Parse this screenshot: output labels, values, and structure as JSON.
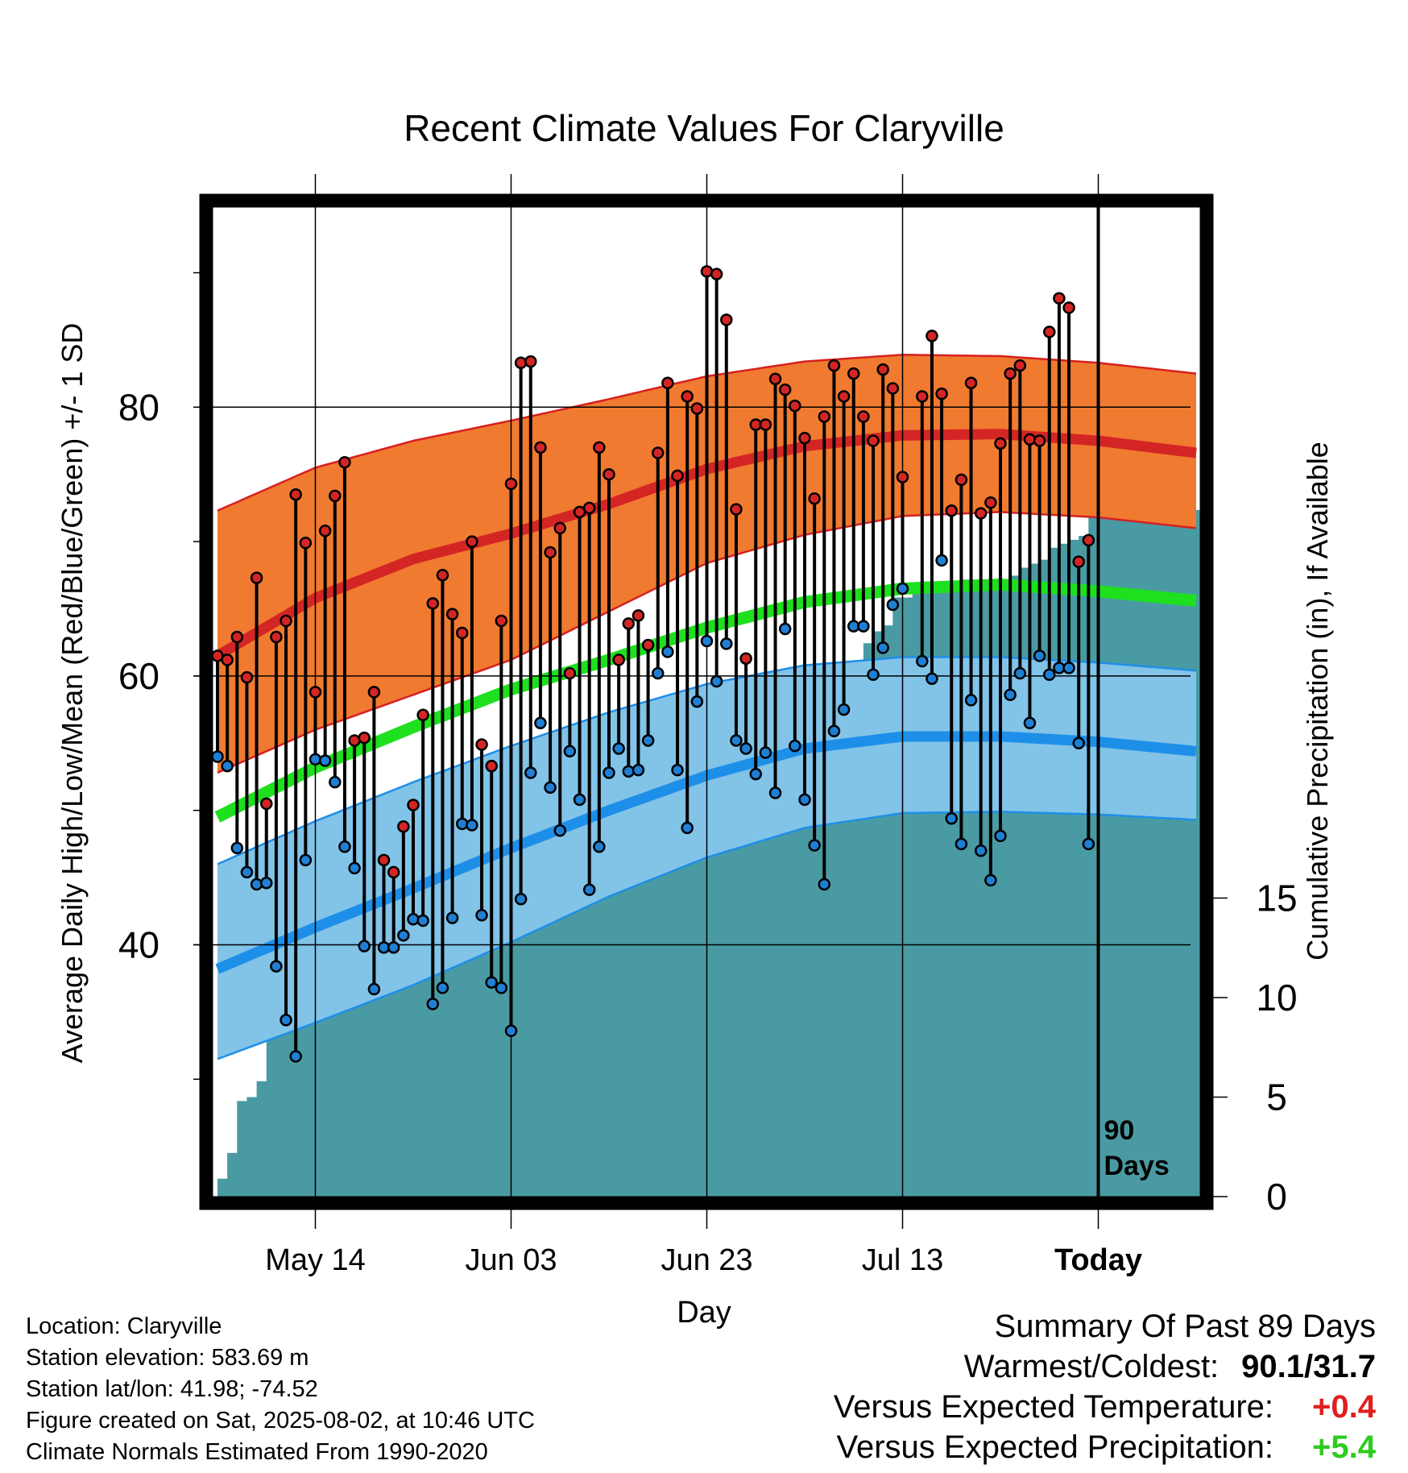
{
  "title": "Recent Climate Values For Claryville",
  "colors": {
    "high_band": "#f07a30",
    "high_band_edge": "#d62020",
    "high_mean": "#d42525",
    "mean_line": "#1ee01e",
    "low_band": "#82c3e8",
    "low_band_edge": "#1e8fe8",
    "low_mean": "#1e8fe8",
    "precip": "#4a9aa3",
    "high_dot": "#d42525",
    "low_dot": "#1e7fd4"
  },
  "chart_data": {
    "type": "line",
    "title": "Recent Climate Values For Claryville",
    "xlabel": "Day",
    "ylabel": "Average Daily High/Low/Mean (Red/Blue/Green) +/- 1 SD",
    "y2label": "Cumulative Precipitation (in), If Available",
    "x_tick_labels": [
      "May 14",
      "Jun 03",
      "Jun 23",
      "Jul 13",
      "Today"
    ],
    "x_tick_days": [
      10,
      30,
      50,
      70,
      90
    ],
    "x_range": [
      0,
      100
    ],
    "y_ticks": [
      40,
      60,
      80
    ],
    "y_range": [
      22,
      95
    ],
    "y2_ticks": [
      0,
      5,
      10,
      15
    ],
    "y2_range": [
      0,
      51
    ],
    "end_label_line1": "90",
    "end_label_line2": "Days",
    "normals": {
      "days": [
        0,
        10,
        20,
        30,
        40,
        50,
        60,
        70,
        80,
        90,
        100
      ],
      "high_mean": [
        61.5,
        65.8,
        68.7,
        70.6,
        72.8,
        75.4,
        77.1,
        77.9,
        78.0,
        77.5,
        76.6
      ],
      "high_upper": [
        72.3,
        75.5,
        77.5,
        79.0,
        80.6,
        82.3,
        83.4,
        83.9,
        83.8,
        83.3,
        82.5
      ],
      "high_lower": [
        52.8,
        56.0,
        58.6,
        61.2,
        64.8,
        68.4,
        70.5,
        71.9,
        72.2,
        71.8,
        71.0
      ],
      "mean": [
        49.5,
        53.2,
        56.2,
        59.0,
        61.2,
        63.6,
        65.5,
        66.5,
        66.8,
        66.3,
        65.6
      ],
      "low_upper": [
        46.0,
        49.2,
        52.1,
        54.8,
        57.3,
        59.4,
        60.8,
        61.4,
        61.4,
        61.0,
        60.4
      ],
      "low_mean": [
        38.2,
        41.3,
        44.2,
        47.2,
        50.0,
        52.6,
        54.6,
        55.5,
        55.5,
        55.1,
        54.4
      ],
      "low_lower": [
        31.5,
        34.2,
        37.0,
        40.2,
        43.6,
        46.5,
        48.7,
        49.8,
        49.9,
        49.7,
        49.3
      ]
    },
    "series": [
      {
        "name": "High",
        "values": [
          61.5,
          61.2,
          62.9,
          59.9,
          67.3,
          50.5,
          62.9,
          64.1,
          73.5,
          69.9,
          58.8,
          70.8,
          73.4,
          75.9,
          55.2,
          55.4,
          58.8,
          46.3,
          45.4,
          48.8,
          50.4,
          57.1,
          65.4,
          67.5,
          64.6,
          63.2,
          70.0,
          54.9,
          53.3,
          64.1,
          74.3,
          83.3,
          83.4,
          77.0,
          69.2,
          71.0,
          60.2,
          72.2,
          72.5,
          77.0,
          75.0,
          61.2,
          63.9,
          64.5,
          62.3,
          76.6,
          81.8,
          74.9,
          80.8,
          79.9,
          90.1,
          89.9,
          86.5,
          72.4,
          61.3,
          78.7,
          78.7,
          82.1,
          81.3,
          80.1,
          77.7,
          73.2,
          79.3,
          83.1,
          80.8,
          82.5,
          79.3,
          77.5,
          82.8,
          81.4,
          74.8,
          null,
          80.8,
          85.3,
          81.0,
          72.3,
          74.6,
          81.8,
          72.1,
          72.9,
          77.3,
          82.5,
          83.1,
          77.6,
          77.5,
          85.6,
          88.1,
          87.4,
          68.5,
          70.1
        ]
      },
      {
        "name": "Low",
        "values": [
          54.0,
          53.3,
          47.2,
          45.4,
          44.5,
          44.6,
          38.4,
          34.4,
          31.7,
          46.3,
          53.8,
          53.7,
          52.1,
          47.3,
          45.7,
          39.9,
          36.7,
          39.8,
          39.8,
          40.7,
          41.9,
          41.8,
          35.6,
          36.8,
          42.0,
          49.0,
          48.9,
          42.2,
          37.2,
          36.8,
          33.6,
          43.4,
          52.8,
          56.5,
          51.7,
          48.5,
          54.4,
          50.8,
          44.1,
          47.3,
          52.8,
          54.6,
          52.9,
          53.0,
          55.2,
          60.2,
          61.8,
          53.0,
          48.7,
          58.1,
          62.6,
          59.6,
          62.4,
          55.2,
          54.6,
          52.7,
          54.3,
          51.3,
          63.5,
          54.8,
          50.8,
          47.4,
          44.5,
          55.9,
          57.5,
          63.7,
          63.7,
          60.1,
          62.1,
          65.3,
          66.5,
          null,
          61.1,
          59.8,
          68.6,
          49.4,
          47.5,
          58.2,
          47.0,
          44.8,
          48.1,
          58.6,
          60.2,
          56.5,
          61.5,
          60.1,
          60.6,
          60.6,
          55.0,
          47.5
        ]
      },
      {
        "name": "Cumulative Precipitation",
        "values": [
          0.9,
          2.2,
          4.8,
          5.0,
          5.8,
          9.0,
          9.0,
          9.0,
          9.1,
          9.3,
          10.0,
          10.0,
          10.0,
          10.2,
          10.4,
          10.4,
          10.4,
          10.8,
          11.3,
          11.6,
          11.8,
          12.3,
          12.3,
          12.3,
          12.3,
          12.3,
          12.4,
          12.4,
          17.7,
          17.7,
          17.7,
          17.7,
          17.7,
          17.8,
          18.2,
          18.8,
          19.1,
          19.5,
          19.5,
          19.5,
          19.5,
          19.7,
          20.2,
          20.5,
          21.0,
          22.4,
          22.4,
          22.4,
          23.1,
          23.6,
          23.6,
          23.6,
          23.7,
          23.8,
          23.8,
          23.8,
          23.9,
          24.3,
          24.4,
          24.7,
          24.7,
          24.7,
          24.7,
          24.7,
          24.7,
          26.7,
          27.8,
          28.4,
          28.7,
          30.1,
          30.1,
          30.5,
          30.9,
          30.9,
          30.9,
          30.9,
          31.0,
          31.0,
          31.0,
          31.0,
          31.0,
          31.2,
          31.6,
          31.8,
          32.0,
          32.6,
          32.8,
          33.0,
          33.2,
          34.5,
          34.5,
          34.5,
          34.5,
          34.5,
          34.5,
          34.5,
          34.5,
          34.5,
          34.5,
          34.5,
          34.5
        ]
      }
    ]
  },
  "info": {
    "location": "Location: Claryville",
    "elevation": "Station elevation: 583.69 m",
    "latlon": "Station lat/lon: 41.98; -74.52",
    "created": "Figure created on Sat, 2025-08-02, at 10:46 UTC",
    "normals": "Climate Normals Estimated From 1990-2020"
  },
  "summary": {
    "heading": "Summary Of Past 89 Days",
    "warm_label": "Warmest/Coldest:",
    "warm_value": "90.1/31.7",
    "temp_label": "Versus Expected Temperature:",
    "temp_value": "+0.4",
    "precip_label": "Versus Expected Precipitation:",
    "precip_value": "+5.4"
  }
}
